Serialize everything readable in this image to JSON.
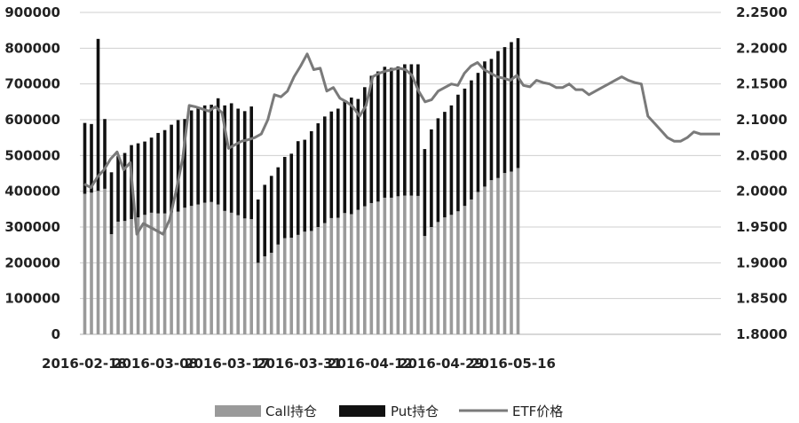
{
  "chart_data": {
    "type": "bar",
    "stacked": true,
    "grid": true,
    "legend_position": "bottom",
    "x_tick_labels": [
      "2016-02-18",
      "2016-03-08",
      "2016-03-17",
      "2016-03-31",
      "2016-04-12",
      "2016-04-29",
      "2016-05-16"
    ],
    "y_left": {
      "ylim": [
        0,
        900000
      ],
      "ticks": [
        "0",
        "100000",
        "200000",
        "300000",
        "400000",
        "500000",
        "600000",
        "700000",
        "800000",
        "900000"
      ]
    },
    "y_right": {
      "ylim": [
        1.8,
        2.25
      ],
      "ticks": [
        "1.8000",
        "1.8500",
        "1.9000",
        "1.9500",
        "2.0000",
        "2.0500",
        "2.1000",
        "2.1500",
        "2.2000",
        "2.2500"
      ]
    },
    "series": [
      {
        "name": "Call持仓",
        "type": "bar",
        "color": "#9a9a9a",
        "values": [
          393000,
          396000,
          401000,
          407000,
          280000,
          315000,
          317000,
          322000,
          327000,
          334000,
          340000,
          338000,
          338000,
          341000,
          343000,
          354000,
          359000,
          363000,
          368000,
          370000,
          363000,
          345000,
          340000,
          333000,
          324000,
          322000,
          200000,
          218000,
          228000,
          251000,
          269000,
          270000,
          278000,
          287000,
          289000,
          300000,
          311000,
          325000,
          326000,
          339000,
          336000,
          348000,
          358000,
          367000,
          371000,
          382000,
          382000,
          386000,
          388000,
          388000,
          387000,
          275000,
          300000,
          314000,
          327000,
          334000,
          344000,
          359000,
          377000,
          398000,
          413000,
          431000,
          437000,
          451000,
          455000,
          465000
        ]
      },
      {
        "name": "Put持仓",
        "type": "bar",
        "color": "#111111",
        "values": [
          198000,
          192000,
          425000,
          195000,
          173000,
          183000,
          190000,
          207000,
          207000,
          205000,
          210000,
          225000,
          233000,
          245000,
          256000,
          248000,
          267000,
          270000,
          272000,
          272000,
          297000,
          295000,
          306000,
          298000,
          300000,
          315000,
          177000,
          200000,
          215000,
          216000,
          227000,
          235000,
          262000,
          257000,
          279000,
          290000,
          298000,
          298000,
          305000,
          313000,
          326000,
          310000,
          333000,
          356000,
          364000,
          366000,
          363000,
          363000,
          367000,
          367000,
          368000,
          243000,
          273000,
          290000,
          295000,
          306000,
          326000,
          328000,
          333000,
          333000,
          350000,
          339000,
          355000,
          352000,
          362000,
          363000
        ]
      },
      {
        "name": "ETF价格",
        "type": "line",
        "axis": "right",
        "color": "#7a7a7a",
        "values": [
          2.01,
          2.005,
          2.02,
          2.03,
          2.045,
          2.055,
          2.03,
          2.04,
          1.94,
          1.955,
          1.95,
          1.945,
          1.94,
          1.96,
          2.0,
          2.045,
          2.12,
          2.118,
          2.115,
          2.112,
          2.118,
          2.11,
          2.06,
          2.065,
          2.07,
          2.072,
          2.075,
          2.08,
          2.1,
          2.135,
          2.132,
          2.14,
          2.16,
          2.175,
          2.192,
          2.17,
          2.172,
          2.14,
          2.145,
          2.13,
          2.125,
          2.118,
          2.105,
          2.12,
          2.16,
          2.165,
          2.168,
          2.17,
          2.172,
          2.17,
          2.162,
          2.14,
          2.125,
          2.128,
          2.14,
          2.145,
          2.15,
          2.148,
          2.165,
          2.175,
          2.18,
          2.17,
          2.165,
          2.16,
          2.158,
          2.155,
          2.162,
          2.148,
          2.146,
          2.155,
          2.152,
          2.15,
          2.145,
          2.145,
          2.15,
          2.142,
          2.142,
          2.135,
          2.14,
          2.145,
          2.15,
          2.155,
          2.16,
          2.155,
          2.152,
          2.15,
          2.105,
          2.095,
          2.085,
          2.075,
          2.07,
          2.07,
          2.075,
          2.083,
          2.08,
          2.08,
          2.08,
          2.08
        ]
      }
    ]
  }
}
